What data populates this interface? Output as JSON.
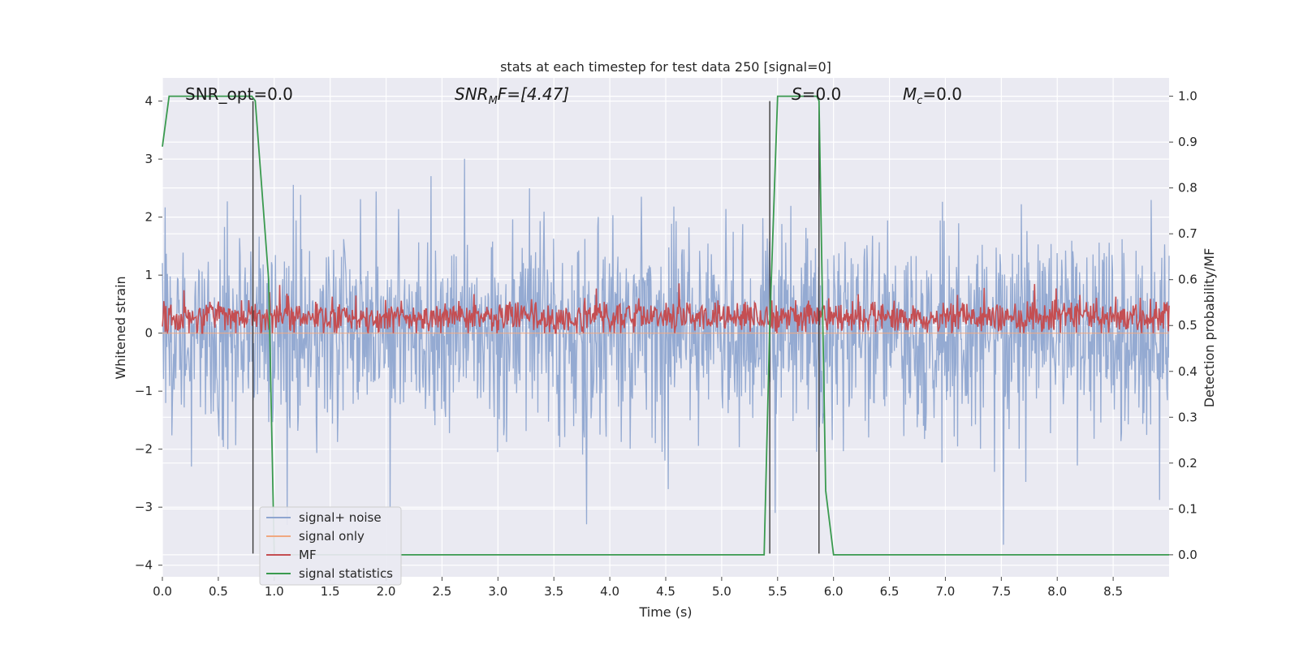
{
  "chart_data": {
    "type": "line",
    "title": "stats at each timestep for test data 250 [signal=0]",
    "xlabel": "Time (s)",
    "ylabel": "Whitened strain",
    "ylabel_right": "Detection probability/MF",
    "xlim": [
      0.0,
      9.0
    ],
    "ylim": [
      -4.2,
      4.4
    ],
    "ylim_right": [
      -0.048,
      1.04
    ],
    "xticks": [
      "0.0",
      "0.5",
      "1.0",
      "1.5",
      "2.0",
      "2.5",
      "3.0",
      "3.5",
      "4.0",
      "4.5",
      "5.0",
      "5.5",
      "6.0",
      "6.5",
      "7.0",
      "7.5",
      "8.0",
      "8.5"
    ],
    "yticks": [
      "4",
      "3",
      "2",
      "1",
      "0",
      "−1",
      "−2",
      "−3",
      "−4"
    ],
    "yticks_right": [
      "1.0",
      "0.9",
      "0.8",
      "0.7",
      "0.6",
      "0.5",
      "0.4",
      "0.3",
      "0.2",
      "0.1",
      "0.0"
    ],
    "grid": true,
    "legend_position": "lower-left",
    "annotations": {
      "snr_opt": "SNR_opt=0.0",
      "snr_mf_main": "SNR",
      "snr_mf_sub": "M",
      "snr_mf_rest": "F=[4.47]",
      "s_label": "S",
      "s_rest": "=0.0",
      "mc_main": "M",
      "mc_sub": "c",
      "mc_rest": "=0.0"
    },
    "series": [
      {
        "name": "signal+ noise",
        "color": "#8fa6d0",
        "description_values": {
          "mean": 0.0,
          "std": 0.8,
          "range": [
            -3.6,
            4.0
          ]
        }
      },
      {
        "name": "signal only",
        "color": "#f0a880",
        "values": [
          0
        ]
      },
      {
        "name": "MF",
        "color": "#c44e52",
        "description_values": {
          "mean": 0.27,
          "range": [
            0.0,
            1.0
          ]
        }
      },
      {
        "name": "signal statistics",
        "color": "#3a9a4f",
        "x": [
          0.0,
          0.06,
          0.5,
          0.8,
          0.83,
          0.95,
          1.0,
          5.38,
          5.43,
          5.5,
          5.85,
          5.87,
          5.93,
          6.0,
          9.0
        ],
        "y": [
          0.89,
          1.0,
          1.0,
          1.0,
          0.99,
          0.6,
          0.0,
          0.0,
          0.5,
          1.0,
          1.0,
          0.99,
          0.14,
          0.0,
          0.0
        ]
      }
    ],
    "vlines_x": [
      0.81,
      5.43,
      5.87
    ],
    "vline_range": [
      -3.8,
      4.0
    ]
  },
  "colors": {
    "plot_bg": "#eaeaf2",
    "grid": "#ffffff",
    "noise": "#8fa6d0",
    "signal": "#f0a880",
    "mf": "#c44e52",
    "stats": "#3a9a4f",
    "vline": "#3a3a3a"
  }
}
